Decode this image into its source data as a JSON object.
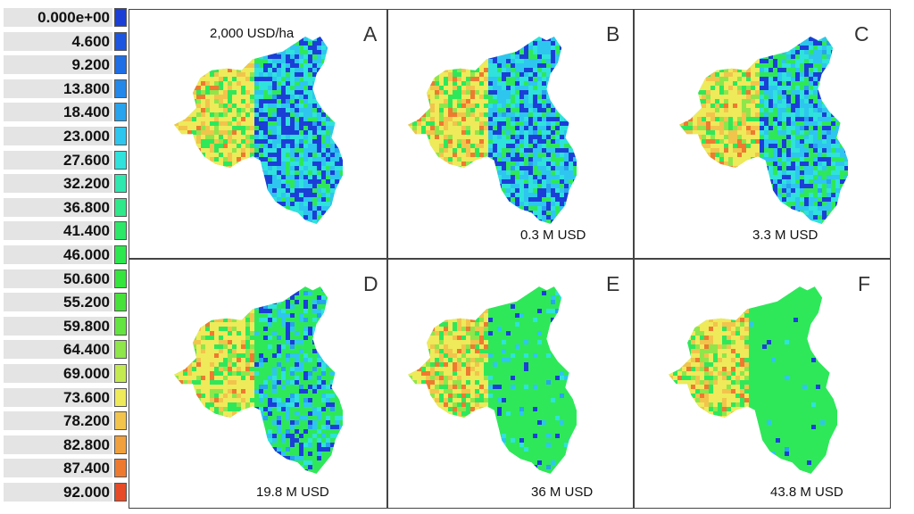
{
  "legend": {
    "entries": [
      {
        "label": "0.000e+00",
        "color": "#1b3fd6"
      },
      {
        "label": "4.600",
        "color": "#1c55e0"
      },
      {
        "label": "9.200",
        "color": "#1e6ee6"
      },
      {
        "label": "13.800",
        "color": "#2388ea"
      },
      {
        "label": "18.400",
        "color": "#28a3ee"
      },
      {
        "label": "23.000",
        "color": "#2ec6ef"
      },
      {
        "label": "27.600",
        "color": "#2fe2dc"
      },
      {
        "label": "32.200",
        "color": "#2ee8b0"
      },
      {
        "label": "36.800",
        "color": "#2ee88a"
      },
      {
        "label": "41.400",
        "color": "#2de868"
      },
      {
        "label": "46.000",
        "color": "#2ce84e"
      },
      {
        "label": "50.600",
        "color": "#35e43d"
      },
      {
        "label": "55.200",
        "color": "#46e23a"
      },
      {
        "label": "59.800",
        "color": "#64e440"
      },
      {
        "label": "64.400",
        "color": "#8ee64a"
      },
      {
        "label": "69.000",
        "color": "#c4ea52"
      },
      {
        "label": "73.600",
        "color": "#eeea5a"
      },
      {
        "label": "78.200",
        "color": "#f2c44c"
      },
      {
        "label": "82.800",
        "color": "#f0a03c"
      },
      {
        "label": "87.400",
        "color": "#ee7a30"
      },
      {
        "label": "92.000",
        "color": "#e64a26"
      }
    ]
  },
  "panels": [
    {
      "letter": "A",
      "caption": "2,000 USD/ha",
      "green_level": 0.15
    },
    {
      "letter": "B",
      "caption": "0.3 M USD",
      "green_level": 0.2
    },
    {
      "letter": "C",
      "caption": "3.3 M USD",
      "green_level": 0.3
    },
    {
      "letter": "D",
      "caption": "19.8 M USD",
      "green_level": 0.6
    },
    {
      "letter": "E",
      "caption": "36 M USD",
      "green_level": 0.9
    },
    {
      "letter": "F",
      "caption": "43.8 M USD",
      "green_level": 0.97
    }
  ]
}
